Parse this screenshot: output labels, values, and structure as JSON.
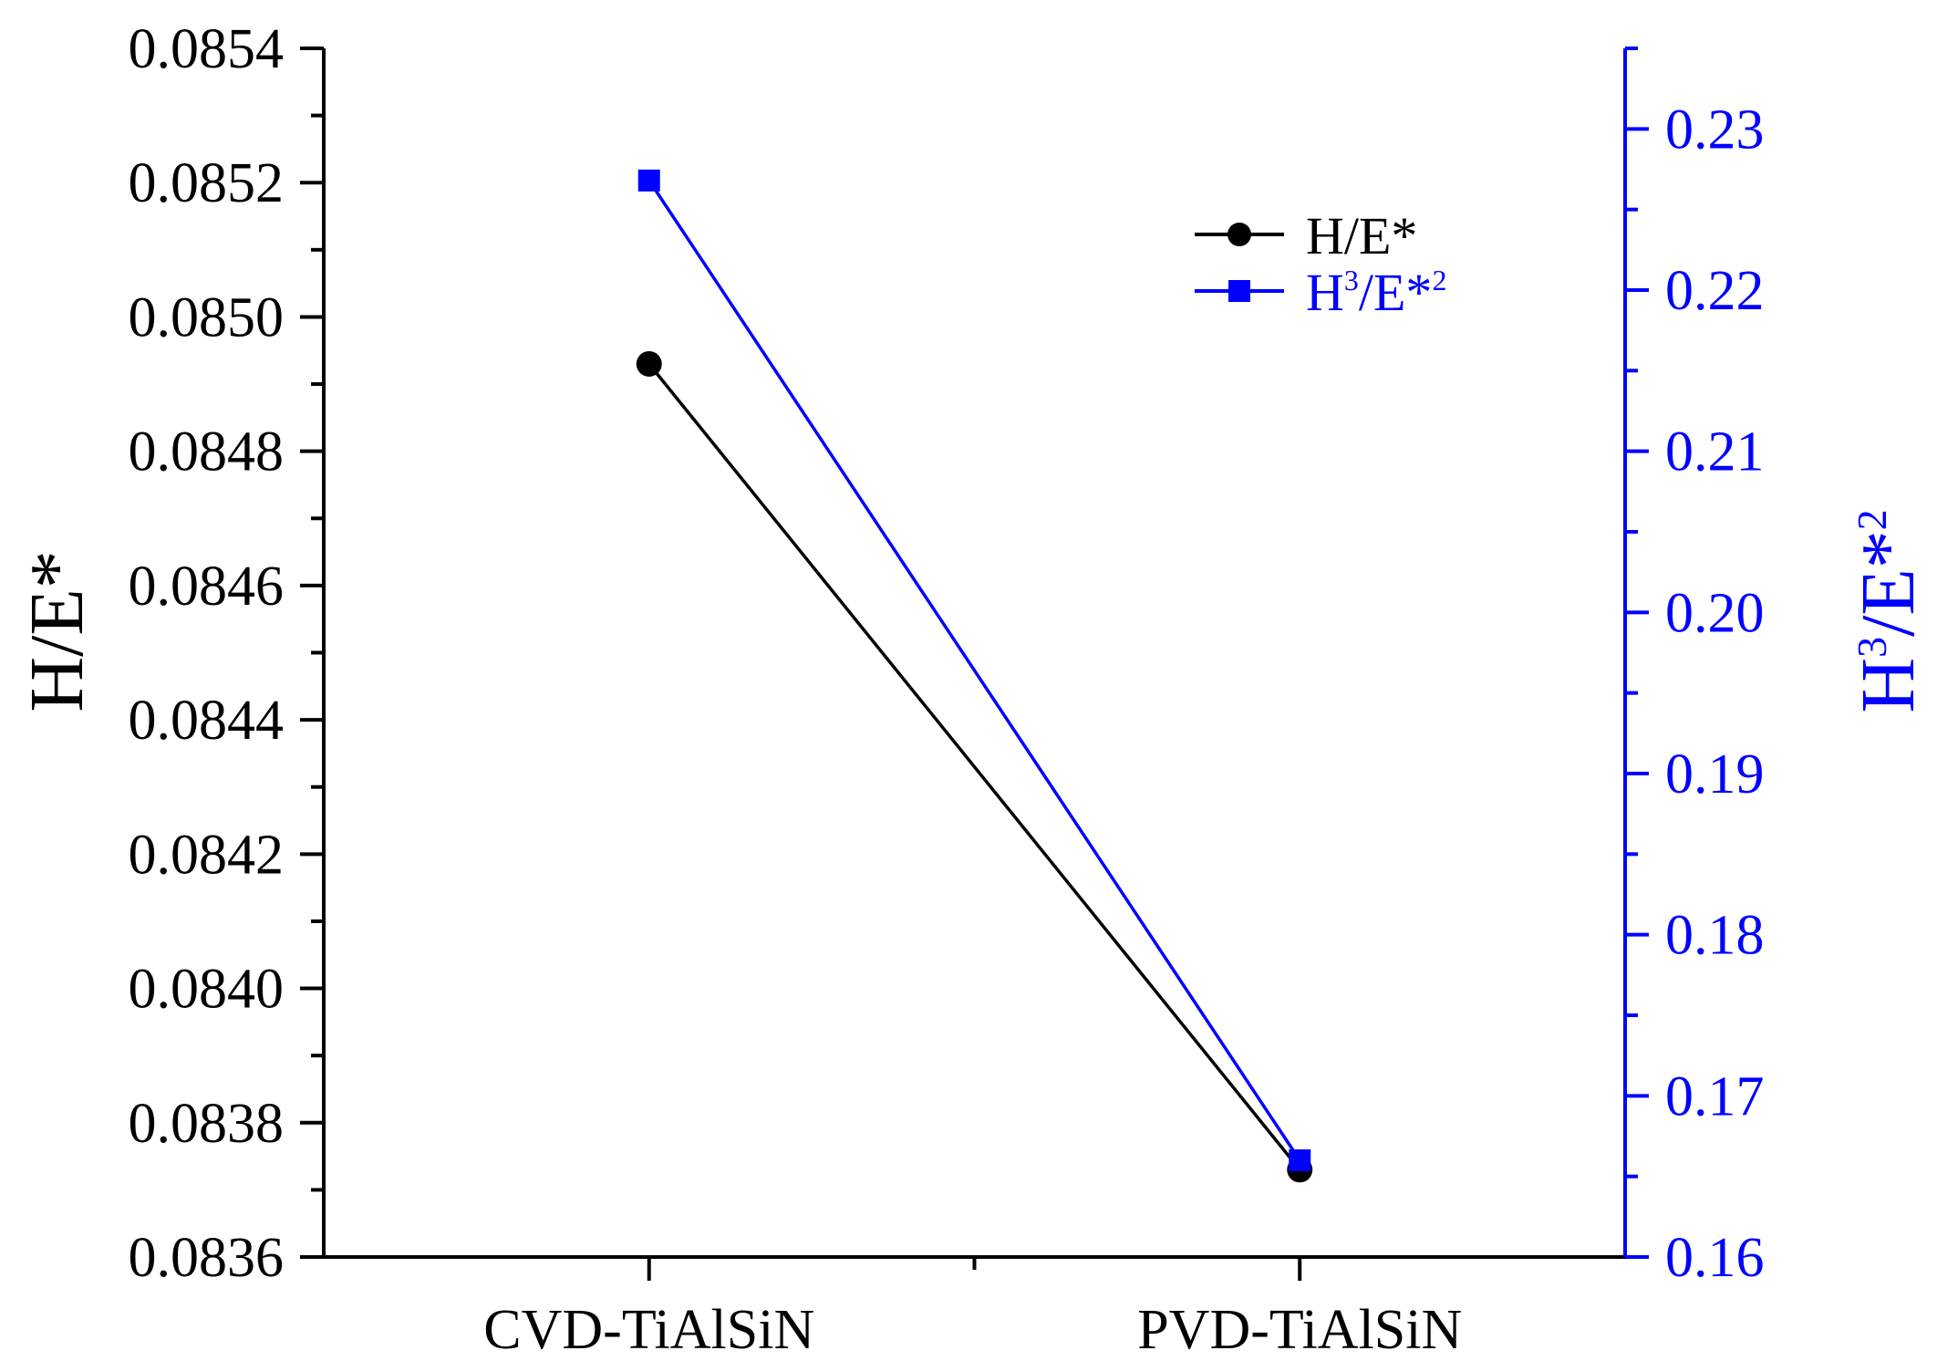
{
  "chart_data": {
    "type": "line",
    "categories": [
      "CVD-TiAlSiN",
      "PVD-TiAlSiN"
    ],
    "series": [
      {
        "name": "H/E*",
        "name_base": "H/E*",
        "axis": "left",
        "color": "#000000",
        "marker": "circle",
        "values": [
          0.08493,
          0.08373
        ]
      },
      {
        "name": "H3/E*2",
        "name_base": "H",
        "name_sup1": "3",
        "name_mid": "/E*",
        "name_sup2": "2",
        "axis": "right",
        "color": "#0000ff",
        "marker": "square",
        "values": [
          0.2268,
          0.166
        ]
      }
    ],
    "left_axis": {
      "label": "H/E*",
      "range": [
        0.0836,
        0.0854
      ],
      "major_ticks": [
        0.0836,
        0.0838,
        0.084,
        0.0842,
        0.0844,
        0.0846,
        0.0848,
        0.085,
        0.0852,
        0.0854
      ],
      "tick_labels": [
        "0.0836",
        "0.0838",
        "0.0840",
        "0.0842",
        "0.0844",
        "0.0846",
        "0.0848",
        "0.0850",
        "0.0852",
        "0.0854"
      ]
    },
    "right_axis": {
      "label": "H3/E*2",
      "label_base": "H",
      "label_sup1": "3",
      "label_mid": "/E*",
      "label_sup2": "2",
      "range": [
        0.16,
        0.235
      ],
      "major_ticks": [
        0.16,
        0.17,
        0.18,
        0.19,
        0.2,
        0.21,
        0.22,
        0.23
      ],
      "tick_labels": [
        "0.16",
        "0.17",
        "0.18",
        "0.19",
        "0.20",
        "0.21",
        "0.22",
        "0.23"
      ],
      "color": "#0000ff"
    },
    "legend_position": "top-right",
    "grid": false
  }
}
